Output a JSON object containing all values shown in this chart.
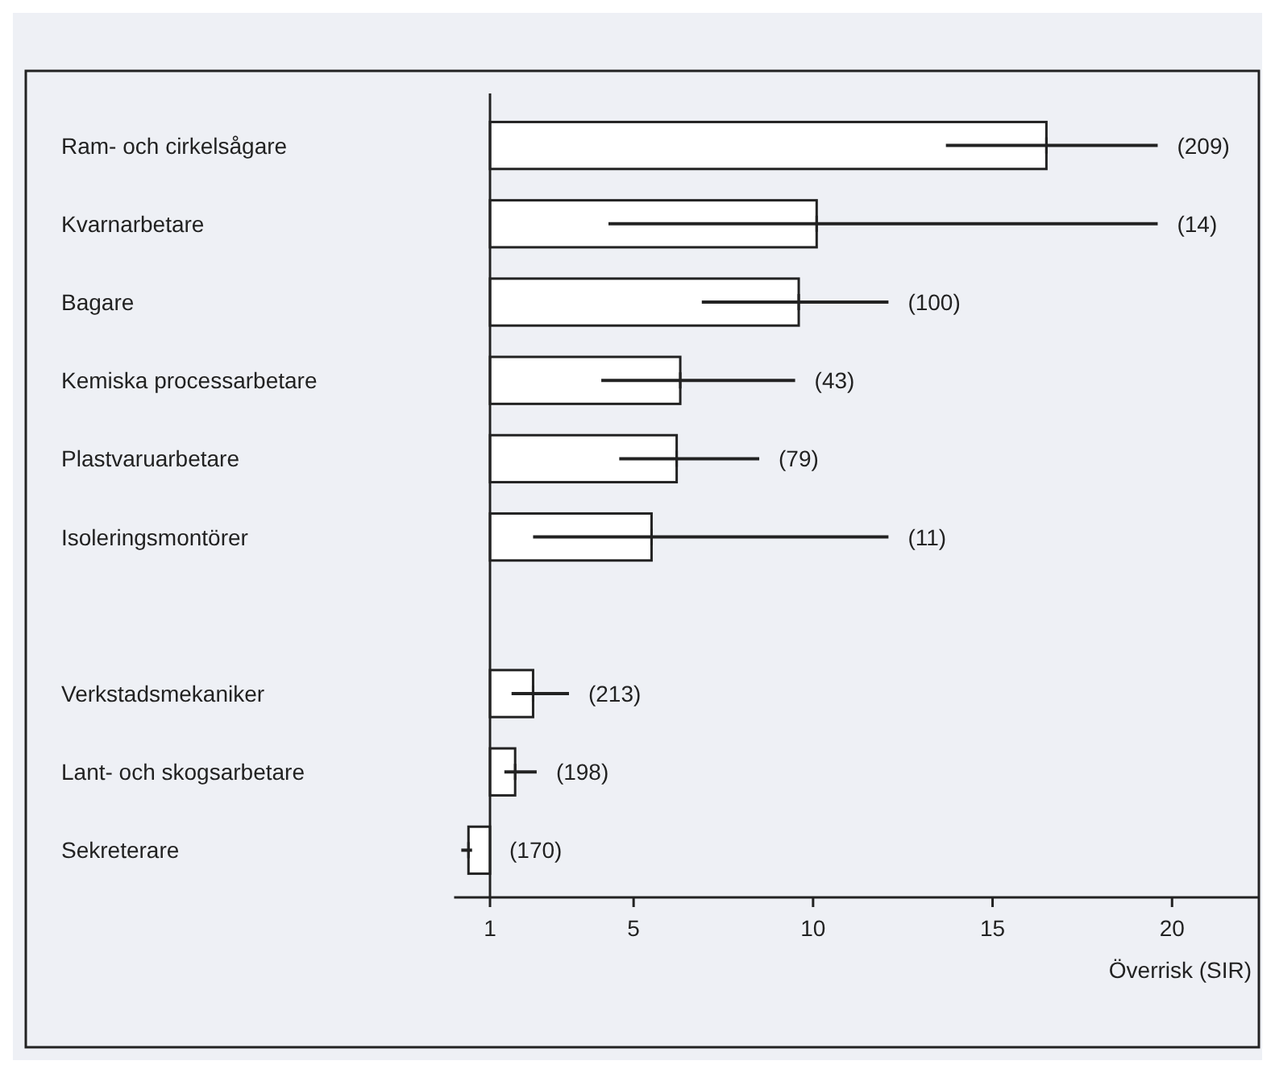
{
  "chart_data": {
    "type": "bar",
    "orientation": "horizontal",
    "xlabel": "Överrisk (SIR)",
    "categories": [
      "Ram- och cirkelsågare",
      "Kvarnarbetare",
      "Bagare",
      "Kemiska processarbetare",
      "Plastvaruarbetare",
      "Isoleringsmontörer",
      null,
      "Verkstadsmekaniker",
      "Lant- och skogsarbetare",
      "Sekreterare"
    ],
    "base": [
      1,
      1,
      1,
      1,
      1,
      1,
      null,
      1,
      1,
      1
    ],
    "values": [
      15.5,
      9.1,
      8.6,
      5.3,
      5.2,
      4.5,
      null,
      1.2,
      0.7,
      -0.6
    ],
    "errors": [
      [
        13.7,
        19.6
      ],
      [
        4.3,
        19.6
      ],
      [
        6.9,
        12.1
      ],
      [
        4.1,
        9.5
      ],
      [
        4.6,
        8.5
      ],
      [
        2.2,
        12.1
      ],
      null,
      [
        1.6,
        3.2
      ],
      [
        1.4,
        2.3
      ],
      [
        0.2,
        0.5
      ]
    ],
    "color": "#ffffff",
    "xlim": [
      0,
      22.4
    ],
    "xticks": [
      1,
      5,
      10,
      15,
      20
    ],
    "ref_lines": [
      {
        "axis": "x",
        "value": 1
      }
    ],
    "annotations": [
      {
        "text": "(209)",
        "x": 19.6,
        "y": "Ram- och cirkelsågare"
      },
      {
        "text": "(14)",
        "x": 19.6,
        "y": "Kvarnarbetare"
      },
      {
        "text": "(100)",
        "x": 12.1,
        "y": "Bagare"
      },
      {
        "text": "(43)",
        "x": 9.5,
        "y": "Kemiska processarbetare"
      },
      {
        "text": "(79)",
        "x": 8.5,
        "y": "Plastvaruarbetare"
      },
      {
        "text": "(11)",
        "x": 12.1,
        "y": "Isoleringsmontörer"
      },
      {
        "text": "(213)",
        "x": 3.2,
        "y": "Verkstadsmekaniker"
      },
      {
        "text": "(198)",
        "x": 2.3,
        "y": "Lant- och skogsarbetare"
      },
      {
        "text": "(170)",
        "x": 1,
        "y": "Sekreterare"
      }
    ],
    "grid": false
  }
}
